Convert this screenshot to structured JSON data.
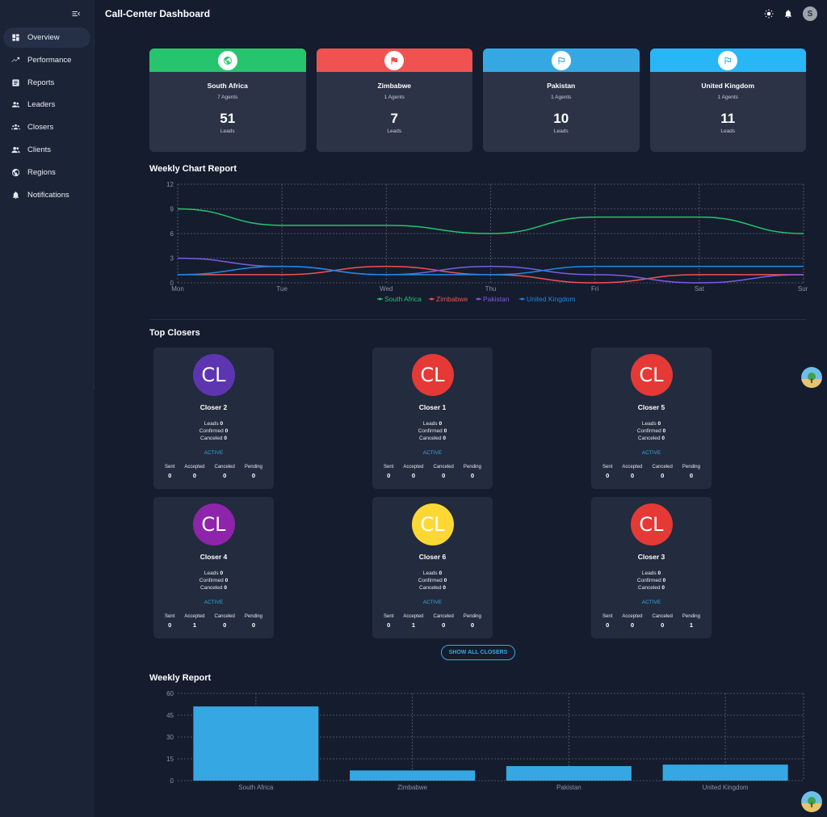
{
  "app": {
    "title": "Call-Center Dashboard",
    "avatar_letter": "S"
  },
  "sidebar": {
    "items": [
      {
        "label": "Overview",
        "icon": "dashboard-icon",
        "active": true
      },
      {
        "label": "Performance",
        "icon": "trending-icon"
      },
      {
        "label": "Reports",
        "icon": "report-icon"
      },
      {
        "label": "Leaders",
        "icon": "people-icon"
      },
      {
        "label": "Closers",
        "icon": "groups-icon"
      },
      {
        "label": "Clients",
        "icon": "clients-icon"
      },
      {
        "label": "Regions",
        "icon": "globe-icon"
      },
      {
        "label": "Notifications",
        "icon": "bell-icon"
      }
    ]
  },
  "countries": [
    {
      "name": "South Africa",
      "agents": "7 Agents",
      "leads": "51",
      "leads_label": "Leads",
      "color": "#27c46e",
      "icon": "globe-icon"
    },
    {
      "name": "Zimbabwe",
      "agents": "1 Agents",
      "leads": "7",
      "leads_label": "Leads",
      "color": "#f05252",
      "icon": "flag-icon"
    },
    {
      "name": "Pakistan",
      "agents": "1 Agents",
      "leads": "10",
      "leads_label": "Leads",
      "color": "#35a8e3",
      "icon": "outlined-flag-icon"
    },
    {
      "name": "United Kingdom",
      "agents": "1 Agents",
      "leads": "11",
      "leads_label": "Leads",
      "color": "#29b6f6",
      "icon": "outlined-flag-icon"
    }
  ],
  "weekly_chart": {
    "title": "Weekly Chart Report"
  },
  "top_closers": {
    "title": "Top Closers",
    "show_all_label": "SHOW ALL CLOSERS",
    "stat_labels": {
      "leads": "Leads",
      "confirmed": "Confirmed",
      "canceled": "Canceled"
    },
    "grid_labels": {
      "sent": "Sent",
      "accepted": "Accepted",
      "canceled": "Canceled",
      "pending": "Pending"
    },
    "items": [
      {
        "initials": "CL",
        "name": "Closer 2",
        "color": "#5e35b1",
        "leads": "0",
        "confirmed": "0",
        "canceled": "0",
        "status": "ACTIVE",
        "sent": "0",
        "accepted": "0",
        "canceled_n": "0",
        "pending": "0"
      },
      {
        "initials": "CL",
        "name": "Closer 1",
        "color": "#e53935",
        "leads": "0",
        "confirmed": "0",
        "canceled": "0",
        "status": "ACTIVE",
        "sent": "0",
        "accepted": "0",
        "canceled_n": "0",
        "pending": "0"
      },
      {
        "initials": "CL",
        "name": "Closer 5",
        "color": "#e53935",
        "leads": "0",
        "confirmed": "0",
        "canceled": "0",
        "status": "ACTIVE",
        "sent": "0",
        "accepted": "0",
        "canceled_n": "0",
        "pending": "0"
      },
      {
        "initials": "CL",
        "name": "Closer 4",
        "color": "#8e24aa",
        "leads": "0",
        "confirmed": "0",
        "canceled": "0",
        "status": "ACTIVE",
        "sent": "0",
        "accepted": "1",
        "canceled_n": "0",
        "pending": "0"
      },
      {
        "initials": "CL",
        "name": "Closer 6",
        "color": "#fdd835",
        "leads": "0",
        "confirmed": "0",
        "canceled": "0",
        "status": "ACTIVE",
        "sent": "0",
        "accepted": "1",
        "canceled_n": "0",
        "pending": "0"
      },
      {
        "initials": "CL",
        "name": "Closer 3",
        "color": "#e53935",
        "leads": "0",
        "confirmed": "0",
        "canceled": "0",
        "status": "ACTIVE",
        "sent": "0",
        "accepted": "0",
        "canceled_n": "0",
        "pending": "1"
      }
    ]
  },
  "weekly_report": {
    "title": "Weekly Report"
  },
  "chart_data": [
    {
      "type": "line",
      "title": "Weekly Chart Report",
      "categories": [
        "Mon",
        "Tue",
        "Wed",
        "Thu",
        "Fri",
        "Sat",
        "Sun"
      ],
      "ylim": [
        0,
        12
      ],
      "yticks": [
        0,
        3,
        6,
        9,
        12
      ],
      "grid": true,
      "legend": "bottom",
      "series": [
        {
          "name": "South Africa",
          "color": "#27c46e",
          "values": [
            9,
            7,
            7,
            6,
            8,
            8,
            6
          ]
        },
        {
          "name": "Zimbabwe",
          "color": "#f05252",
          "values": [
            1,
            1,
            2,
            1,
            0,
            1,
            1
          ]
        },
        {
          "name": "Pakistan",
          "color": "#7c5ce0",
          "values": [
            3,
            2,
            1,
            2,
            1,
            0,
            1
          ]
        },
        {
          "name": "United Kingdom",
          "color": "#1e88e5",
          "values": [
            1,
            2,
            1,
            1,
            2,
            2,
            2
          ]
        }
      ]
    },
    {
      "type": "bar",
      "title": "Weekly Report",
      "categories": [
        "South Africa",
        "Zimbabwe",
        "Pakistan",
        "United Kingdom"
      ],
      "values": [
        51,
        7,
        10,
        11
      ],
      "color": "#35a8e3",
      "ylim": [
        0,
        60
      ],
      "yticks": [
        0,
        15,
        30,
        45,
        60
      ],
      "grid": true
    }
  ]
}
